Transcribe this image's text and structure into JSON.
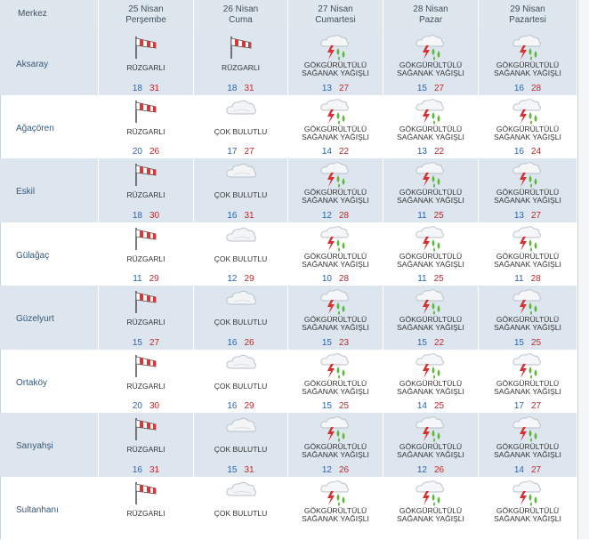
{
  "header": {
    "merkez_label": "Merkez",
    "days": [
      {
        "date": "25 Nisan",
        "weekday": "Perşembe"
      },
      {
        "date": "26 Nisan",
        "weekday": "Cuma"
      },
      {
        "date": "27 Nisan",
        "weekday": "Cumartesi"
      },
      {
        "date": "28 Nisan",
        "weekday": "Pazar"
      },
      {
        "date": "29 Nisan",
        "weekday": "Pazartesi"
      }
    ]
  },
  "colors": {
    "low": "#2b63b0",
    "high": "#c0282b",
    "shade": "#dde6ef"
  },
  "rows": [
    {
      "city": "Aksaray",
      "cells": [
        {
          "icon": "windsock-icon",
          "desc": "RÜZGARLI",
          "lo": "18",
          "hi": "31"
        },
        {
          "icon": "windsock-icon",
          "desc": "RÜZGARLI",
          "lo": "18",
          "hi": "31"
        },
        {
          "icon": "thunder-shower-icon",
          "desc": "GÖKGÜRÜLTÜLÜ\nSAĞANAK YAĞIŞLI",
          "lo": "13",
          "hi": "27"
        },
        {
          "icon": "thunder-shower-icon",
          "desc": "GÖKGÜRÜLTÜLÜ\nSAĞANAK YAĞIŞLI",
          "lo": "15",
          "hi": "27"
        },
        {
          "icon": "thunder-shower-icon",
          "desc": "GÖKGÜRÜLTÜLÜ\nSAĞANAK YAĞIŞLI",
          "lo": "16",
          "hi": "28"
        }
      ]
    },
    {
      "city": "Ağaçören",
      "cells": [
        {
          "icon": "windsock-icon",
          "desc": "RÜZGARLI",
          "lo": "20",
          "hi": "26"
        },
        {
          "icon": "cloud-icon",
          "desc": "ÇOK BULUTLU",
          "lo": "17",
          "hi": "27"
        },
        {
          "icon": "thunder-shower-icon",
          "desc": "GÖKGÜRÜLTÜLÜ\nSAĞANAK YAĞIŞLI",
          "lo": "14",
          "hi": "22"
        },
        {
          "icon": "thunder-shower-icon",
          "desc": "GÖKGÜRÜLTÜLÜ\nSAĞANAK YAĞIŞLI",
          "lo": "13",
          "hi": "22"
        },
        {
          "icon": "thunder-shower-icon",
          "desc": "GÖKGÜRÜLTÜLÜ\nSAĞANAK YAĞIŞLI",
          "lo": "16",
          "hi": "24"
        }
      ]
    },
    {
      "city": "Eskil",
      "cells": [
        {
          "icon": "windsock-icon",
          "desc": "RÜZGARLI",
          "lo": "18",
          "hi": "30"
        },
        {
          "icon": "cloud-icon",
          "desc": "ÇOK BULUTLU",
          "lo": "16",
          "hi": "31"
        },
        {
          "icon": "thunder-shower-icon",
          "desc": "GÖKGÜRÜLTÜLÜ\nSAĞANAK YAĞIŞLI",
          "lo": "12",
          "hi": "28"
        },
        {
          "icon": "thunder-shower-icon",
          "desc": "GÖKGÜRÜLTÜLÜ\nSAĞANAK YAĞIŞLI",
          "lo": "11",
          "hi": "25"
        },
        {
          "icon": "thunder-shower-icon",
          "desc": "GÖKGÜRÜLTÜLÜ\nSAĞANAK YAĞIŞLI",
          "lo": "13",
          "hi": "27"
        }
      ]
    },
    {
      "city": "Gülağaç",
      "cells": [
        {
          "icon": "windsock-icon",
          "desc": "RÜZGARLI",
          "lo": "11",
          "hi": "29"
        },
        {
          "icon": "cloud-icon",
          "desc": "ÇOK BULUTLU",
          "lo": "12",
          "hi": "29"
        },
        {
          "icon": "thunder-shower-icon",
          "desc": "GÖKGÜRÜLTÜLÜ\nSAĞANAK YAĞIŞLI",
          "lo": "10",
          "hi": "28"
        },
        {
          "icon": "thunder-shower-icon",
          "desc": "GÖKGÜRÜLTÜLÜ\nSAĞANAK YAĞIŞLI",
          "lo": "11",
          "hi": "25"
        },
        {
          "icon": "thunder-shower-icon",
          "desc": "GÖKGÜRÜLTÜLÜ\nSAĞANAK YAĞIŞLI",
          "lo": "11",
          "hi": "28"
        }
      ]
    },
    {
      "city": "Güzelyurt",
      "cells": [
        {
          "icon": "windsock-icon",
          "desc": "RÜZGARLI",
          "lo": "15",
          "hi": "27"
        },
        {
          "icon": "cloud-icon",
          "desc": "ÇOK BULUTLU",
          "lo": "16",
          "hi": "26"
        },
        {
          "icon": "thunder-shower-icon",
          "desc": "GÖKGÜRÜLTÜLÜ\nSAĞANAK YAĞIŞLI",
          "lo": "15",
          "hi": "23"
        },
        {
          "icon": "thunder-shower-icon",
          "desc": "GÖKGÜRÜLTÜLÜ\nSAĞANAK YAĞIŞLI",
          "lo": "15",
          "hi": "22"
        },
        {
          "icon": "thunder-shower-icon",
          "desc": "GÖKGÜRÜLTÜLÜ\nSAĞANAK YAĞIŞLI",
          "lo": "15",
          "hi": "25"
        }
      ]
    },
    {
      "city": "Ortaköy",
      "cells": [
        {
          "icon": "windsock-icon",
          "desc": "RÜZGARLI",
          "lo": "20",
          "hi": "30"
        },
        {
          "icon": "cloud-icon",
          "desc": "ÇOK BULUTLU",
          "lo": "16",
          "hi": "29"
        },
        {
          "icon": "thunder-shower-icon",
          "desc": "GÖKGÜRÜLTÜLÜ\nSAĞANAK YAĞIŞLI",
          "lo": "15",
          "hi": "25"
        },
        {
          "icon": "thunder-shower-icon",
          "desc": "GÖKGÜRÜLTÜLÜ\nSAĞANAK YAĞIŞLI",
          "lo": "14",
          "hi": "25"
        },
        {
          "icon": "thunder-shower-icon",
          "desc": "GÖKGÜRÜLTÜLÜ\nSAĞANAK YAĞIŞLI",
          "lo": "17",
          "hi": "27"
        }
      ]
    },
    {
      "city": "Sarıyahşi",
      "cells": [
        {
          "icon": "windsock-icon",
          "desc": "RÜZGARLI",
          "lo": "16",
          "hi": "31"
        },
        {
          "icon": "cloud-icon",
          "desc": "ÇOK BULUTLU",
          "lo": "15",
          "hi": "31"
        },
        {
          "icon": "thunder-shower-icon",
          "desc": "GÖKGÜRÜLTÜLÜ\nSAĞANAK YAĞIŞLI",
          "lo": "12",
          "hi": "26"
        },
        {
          "icon": "thunder-shower-icon",
          "desc": "GÖKGÜRÜLTÜLÜ\nSAĞANAK YAĞIŞLI",
          "lo": "12",
          "hi": "26"
        },
        {
          "icon": "thunder-shower-icon",
          "desc": "GÖKGÜRÜLTÜLÜ\nSAĞANAK YAĞIŞLI",
          "lo": "14",
          "hi": "27"
        }
      ]
    },
    {
      "city": "Sultanhanı",
      "cells": [
        {
          "icon": "windsock-icon",
          "desc": "RÜZGARLI",
          "lo": "",
          "hi": ""
        },
        {
          "icon": "cloud-icon",
          "desc": "ÇOK BULUTLU",
          "lo": "",
          "hi": ""
        },
        {
          "icon": "thunder-shower-icon",
          "desc": "GÖKGÜRÜLTÜLÜ\nSAĞANAK YAĞIŞLI",
          "lo": "",
          "hi": ""
        },
        {
          "icon": "thunder-shower-icon",
          "desc": "GÖKGÜRÜLTÜLÜ\nSAĞANAK YAĞIŞLI",
          "lo": "",
          "hi": ""
        },
        {
          "icon": "thunder-shower-icon",
          "desc": "GÖKGÜRÜLTÜLÜ\nSAĞANAK YAĞIŞLI",
          "lo": "",
          "hi": ""
        }
      ]
    }
  ]
}
